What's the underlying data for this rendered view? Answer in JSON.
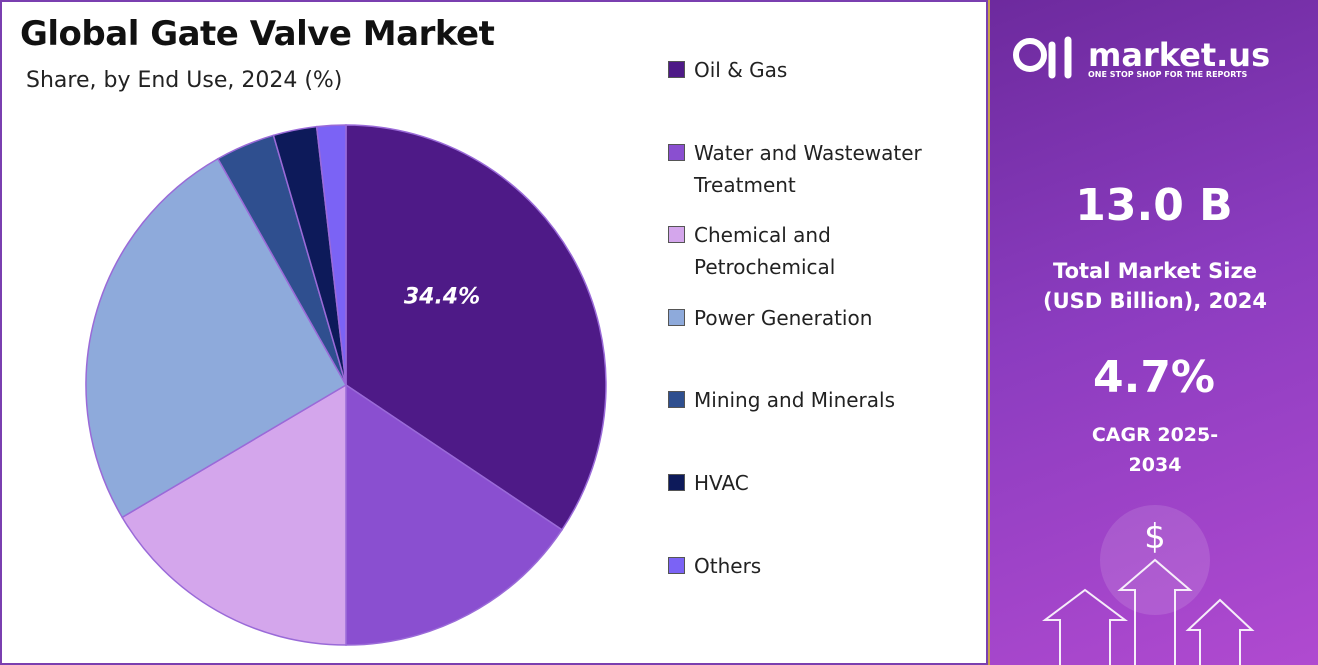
{
  "chart_data": {
    "type": "pie",
    "title": "Global Gate Valve Market",
    "subtitle": "Share, by End Use, 2024 (%)",
    "categories": [
      "Oil & Gas",
      "Water and Wastewater Treatment",
      "Chemical and Petrochemical",
      "Power Generation",
      "Mining and Minerals",
      "HVAC",
      "Others"
    ],
    "values": [
      34.4,
      15.6,
      16.5,
      25.3,
      3.7,
      2.7,
      1.8
    ],
    "value_labels": [
      "34.4%",
      null,
      null,
      null,
      null,
      null,
      null
    ],
    "colors": [
      "#4e1a87",
      "#8a4fd0",
      "#d4a6ec",
      "#8eaadb",
      "#2f4f8f",
      "#0d1a5a",
      "#7b63f5"
    ]
  },
  "panel": {
    "brand": "market.us",
    "tagline": "ONE STOP SHOP FOR THE REPORTS",
    "market_size": "13.0 B",
    "market_size_label": "Total Market Size (USD Billion), 2024",
    "cagr": "4.7%",
    "cagr_label": "CAGR 2025-2034"
  }
}
